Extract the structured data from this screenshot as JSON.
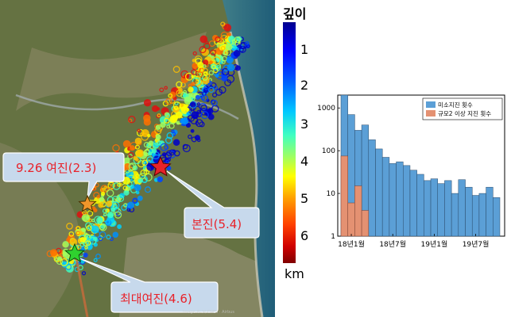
{
  "colors": {
    "mainshock_star": "#e8222a",
    "aftershock_star": "#f0962b",
    "max_aftershock_star": "#2fd12f",
    "callout_fill": "#c7d9ec",
    "callout_text": "#e8222a",
    "bar_micro": "#5b9fd6",
    "bar_m2": "#e49172"
  },
  "map": {
    "callouts": [
      {
        "id": "aftershock-926",
        "label": "9.26 여진(2.3)"
      },
      {
        "id": "mainshock",
        "label": "본진(5.4)"
      },
      {
        "id": "max-aftershock",
        "label": "최대여진(4.6)"
      }
    ],
    "icons": [
      "mainshock-star-icon",
      "aftershock-star-icon",
      "max-aftershock-star-icon"
    ]
  },
  "colorbar": {
    "title": "깊이",
    "ticks": [
      "1",
      "2",
      "3",
      "4",
      "5",
      "6"
    ],
    "unit": "km"
  },
  "chart_data": {
    "type": "bar",
    "title": "",
    "xlabel": "",
    "ylabel": "",
    "yscale": "log",
    "ylim": [
      1,
      2000
    ],
    "yticks": [
      "1",
      "10",
      "100",
      "1000"
    ],
    "xticks": [
      "18년1월",
      "18년7월",
      "19년1월",
      "19년7월"
    ],
    "legend_position": "top-right",
    "series": [
      {
        "name": "미소지진 횟수",
        "values": [
          2000,
          700,
          300,
          400,
          180,
          110,
          70,
          50,
          55,
          45,
          35,
          28,
          20,
          22,
          17,
          20,
          10,
          21,
          14,
          9,
          10,
          14,
          8
        ]
      },
      {
        "name": "규모2 이상 지진 횟수",
        "values": [
          75,
          6,
          15,
          4,
          1,
          1,
          1,
          1,
          1,
          1,
          1,
          1,
          1,
          1,
          1,
          1,
          1,
          1,
          1,
          1,
          1,
          1,
          1
        ]
      }
    ]
  }
}
